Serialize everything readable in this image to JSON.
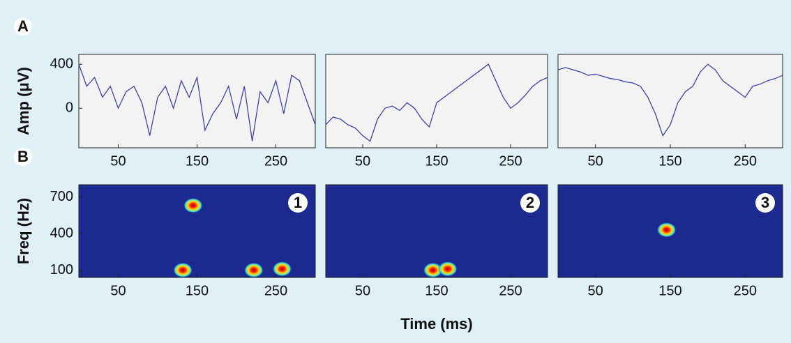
{
  "chart_data": [
    {
      "type": "line",
      "panel_label": "A",
      "ylabel": "Amp (μV)",
      "xlim": [
        0,
        300
      ],
      "xticks": [
        50,
        150,
        250
      ],
      "ylim": [
        -360,
        490
      ],
      "yticks": [
        0,
        400
      ],
      "color": "#3b3fb0",
      "x": [
        0,
        10,
        20,
        30,
        40,
        50,
        60,
        70,
        80,
        90,
        100,
        110,
        120,
        130,
        140,
        150,
        160,
        170,
        180,
        190,
        200,
        210,
        220,
        230,
        240,
        250,
        260,
        270,
        280,
        290,
        300
      ],
      "values": [
        400,
        200,
        280,
        100,
        200,
        0,
        150,
        200,
        50,
        -250,
        100,
        200,
        0,
        250,
        100,
        280,
        -200,
        -50,
        50,
        200,
        -100,
        200,
        -300,
        150,
        50,
        250,
        -50,
        300,
        250,
        50,
        -150
      ]
    },
    {
      "type": "line",
      "xlim": [
        0,
        300
      ],
      "xticks": [
        50,
        150,
        250
      ],
      "ylim": [
        -360,
        490
      ],
      "color": "#3b3fb0",
      "x": [
        0,
        10,
        20,
        30,
        40,
        50,
        60,
        70,
        80,
        90,
        100,
        110,
        120,
        130,
        140,
        150,
        160,
        170,
        180,
        190,
        200,
        210,
        220,
        230,
        240,
        250,
        260,
        270,
        280,
        290,
        300
      ],
      "values": [
        -150,
        -80,
        -100,
        -150,
        -180,
        -250,
        -300,
        -100,
        0,
        20,
        -20,
        50,
        0,
        -100,
        -170,
        50,
        100,
        150,
        200,
        250,
        300,
        350,
        400,
        250,
        100,
        0,
        50,
        120,
        200,
        250,
        280
      ]
    },
    {
      "type": "line",
      "xlim": [
        0,
        300
      ],
      "xticks": [
        50,
        150,
        250
      ],
      "ylim": [
        -360,
        490
      ],
      "color": "#3b3fb0",
      "x": [
        0,
        10,
        20,
        30,
        40,
        50,
        60,
        70,
        80,
        90,
        100,
        110,
        120,
        130,
        140,
        150,
        160,
        170,
        180,
        190,
        200,
        210,
        220,
        230,
        240,
        250,
        260,
        270,
        280,
        290,
        300
      ],
      "values": [
        350,
        370,
        350,
        330,
        300,
        310,
        290,
        270,
        260,
        240,
        230,
        200,
        100,
        -50,
        -250,
        -150,
        50,
        150,
        200,
        330,
        400,
        350,
        250,
        200,
        150,
        100,
        200,
        220,
        250,
        270,
        300
      ]
    },
    {
      "type": "scatter",
      "panel_label": "B",
      "ylabel": "Freq (Hz)",
      "annotation": "1",
      "xlim": [
        0,
        300
      ],
      "xticks": [
        50,
        150,
        250
      ],
      "ylim": [
        40,
        800
      ],
      "yticks": [
        100,
        400,
        700
      ],
      "x": [
        145,
        132,
        222,
        258
      ],
      "values": [
        630,
        100,
        100,
        110
      ]
    },
    {
      "type": "scatter",
      "annotation": "2",
      "xlabel": "Time (ms)",
      "xlim": [
        0,
        300
      ],
      "xticks": [
        50,
        150,
        250
      ],
      "ylim": [
        40,
        800
      ],
      "x": [
        145,
        165
      ],
      "values": [
        100,
        110
      ]
    },
    {
      "type": "scatter",
      "annotation": "3",
      "xlim": [
        0,
        300
      ],
      "xticks": [
        50,
        150,
        250
      ],
      "ylim": [
        40,
        800
      ],
      "x": [
        145
      ],
      "values": [
        430
      ]
    }
  ]
}
